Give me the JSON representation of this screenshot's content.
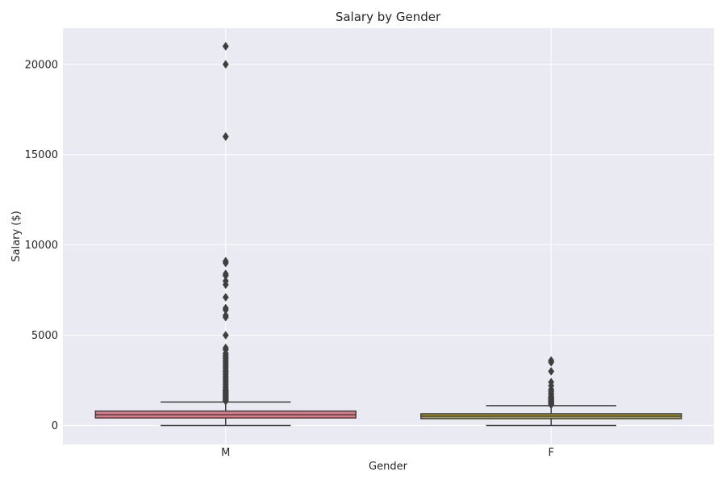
{
  "chart_data": {
    "type": "box",
    "title": "Salary by Gender",
    "xlabel": "Gender",
    "ylabel": "Salary ($)",
    "ylim": [
      -1050,
      22000
    ],
    "yticks": [
      0,
      5000,
      10000,
      15000,
      20000
    ],
    "grid": true,
    "categories": [
      "M",
      "F"
    ],
    "boxes": [
      {
        "category": "M",
        "color": "#e07b8a",
        "whisker_low": 0,
        "q1": 420,
        "median": 600,
        "q3": 800,
        "whisker_high": 1300,
        "outliers": [
          21000,
          21000,
          20000,
          16000,
          16000,
          9100,
          9000,
          8400,
          8300,
          8000,
          7800,
          7100,
          6500,
          6400,
          6100,
          6000,
          5000,
          4300,
          4200,
          4000,
          3900,
          3800,
          3700,
          3600,
          3500,
          3400,
          3300,
          3200,
          3100,
          3000,
          2900,
          2800,
          2700,
          2600,
          2500,
          2400,
          2300,
          2200,
          2100,
          2000,
          1950,
          1900,
          1850,
          1800,
          1750,
          1700,
          1650,
          1600,
          1550,
          1500,
          1450,
          1400,
          1350
        ]
      },
      {
        "category": "F",
        "color": "#b0a136",
        "whisker_low": 0,
        "q1": 380,
        "median": 520,
        "q3": 650,
        "whisker_high": 1100,
        "outliers": [
          3600,
          3500,
          3000,
          2400,
          2200,
          2000,
          1900,
          1800,
          1700,
          1600,
          1550,
          1500,
          1450,
          1400,
          1350,
          1300,
          1250,
          1200,
          1150
        ]
      }
    ]
  }
}
